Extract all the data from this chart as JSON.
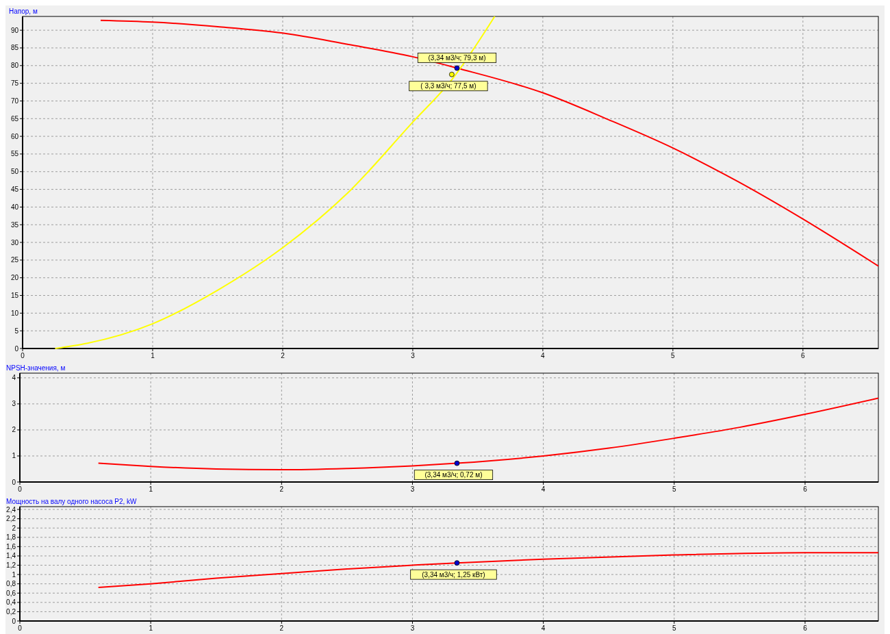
{
  "chart_data": [
    {
      "type": "line",
      "ylabel": "Напор, м",
      "xlim": [
        0,
        6.58
      ],
      "ylim": [
        0,
        93.9
      ],
      "xticks": [
        0,
        1,
        2,
        3,
        4,
        5,
        6
      ],
      "yticks": [
        0,
        5,
        10,
        15,
        20,
        25,
        30,
        35,
        40,
        45,
        50,
        55,
        60,
        65,
        70,
        75,
        80,
        85,
        90
      ],
      "grid": true,
      "line_style": "solid",
      "series": [
        {
          "color": "#ff0000",
          "marker": "none",
          "x": [
            0.6,
            1,
            1.5,
            2,
            2.5,
            3,
            3.34,
            4,
            4.5,
            5,
            5.5,
            6,
            6.58
          ],
          "values": [
            92.8,
            92.3,
            91,
            89.2,
            86,
            82.5,
            79.3,
            72.3,
            64.8,
            56.7,
            47.2,
            36.6,
            23.3
          ]
        },
        {
          "color": "#ffff00",
          "marker": "none",
          "x": [
            0.25,
            0.5,
            1,
            1.5,
            2,
            2.5,
            3,
            3.3,
            3.63
          ],
          "values": [
            0,
            1.5,
            7,
            16.5,
            28.5,
            44,
            64,
            76,
            93.9
          ]
        },
        {
          "type": "scatter",
          "marker": "circle",
          "color": "#0000cc",
          "x": [
            3.34
          ],
          "values": [
            79.3
          ]
        },
        {
          "type": "scatter",
          "marker": "circle",
          "color": "#ffff00",
          "x": [
            3.3
          ],
          "values": [
            77.5
          ]
        }
      ],
      "annotations": [
        "(3,34 м3/ч; 79,3 м)",
        "( 3,3 м3/ч; 77,5 м)"
      ]
    },
    {
      "type": "line",
      "ylabel": "NPSH-значения, м",
      "xlim": [
        0,
        6.56
      ],
      "ylim": [
        0,
        4.18
      ],
      "xticks": [
        0,
        1,
        2,
        3,
        4,
        5,
        6
      ],
      "yticks": [
        0,
        1,
        2,
        3,
        4
      ],
      "grid": true,
      "line_style": "solid",
      "series": [
        {
          "color": "#ff0000",
          "marker": "none",
          "x": [
            0.6,
            1,
            1.5,
            2,
            2.5,
            3,
            3.34,
            4,
            4.5,
            5,
            5.5,
            6,
            6.56
          ],
          "values": [
            0.72,
            0.6,
            0.5,
            0.47,
            0.52,
            0.62,
            0.72,
            1.0,
            1.3,
            1.68,
            2.1,
            2.6,
            3.22
          ]
        },
        {
          "type": "scatter",
          "marker": "circle",
          "color": "#0000cc",
          "x": [
            3.34
          ],
          "values": [
            0.72
          ]
        }
      ],
      "annotations": [
        "(3,34 м3/ч; 0,72 м)"
      ]
    },
    {
      "type": "line",
      "ylabel": "Мощность на валу одного насоса P2, kW",
      "xlim": [
        0,
        6.56
      ],
      "ylim": [
        0,
        2.46
      ],
      "xticks": [
        0,
        1,
        2,
        3,
        4,
        5,
        6
      ],
      "yticks": [
        0,
        {
          "value": 0.2,
          "label": "0,2"
        },
        {
          "value": 0.4,
          "label": "0,4"
        },
        {
          "value": 0.6,
          "label": "0,6"
        },
        {
          "value": 0.8,
          "label": "0,8"
        },
        1,
        {
          "value": 1.2,
          "label": "1,2"
        },
        {
          "value": 1.4,
          "label": "1,4"
        },
        {
          "value": 1.6,
          "label": "1,6"
        },
        {
          "value": 1.8,
          "label": "1,8"
        },
        2,
        {
          "value": 2.2,
          "label": "2,2"
        },
        {
          "value": 2.4,
          "label": "2,4"
        }
      ],
      "grid": true,
      "line_style": "solid",
      "series": [
        {
          "color": "#ff0000",
          "marker": "none",
          "x": [
            0.6,
            1,
            1.5,
            2,
            2.5,
            3,
            3.34,
            4,
            5,
            6,
            6.56
          ],
          "values": [
            0.72,
            0.8,
            0.92,
            1.02,
            1.12,
            1.2,
            1.25,
            1.33,
            1.42,
            1.47,
            1.47
          ]
        },
        {
          "type": "scatter",
          "marker": "circle",
          "color": "#0000cc",
          "x": [
            3.34
          ],
          "values": [
            1.25
          ]
        }
      ],
      "annotations": [
        "(3,34 м3/ч; 1,25 кВт)"
      ]
    }
  ]
}
